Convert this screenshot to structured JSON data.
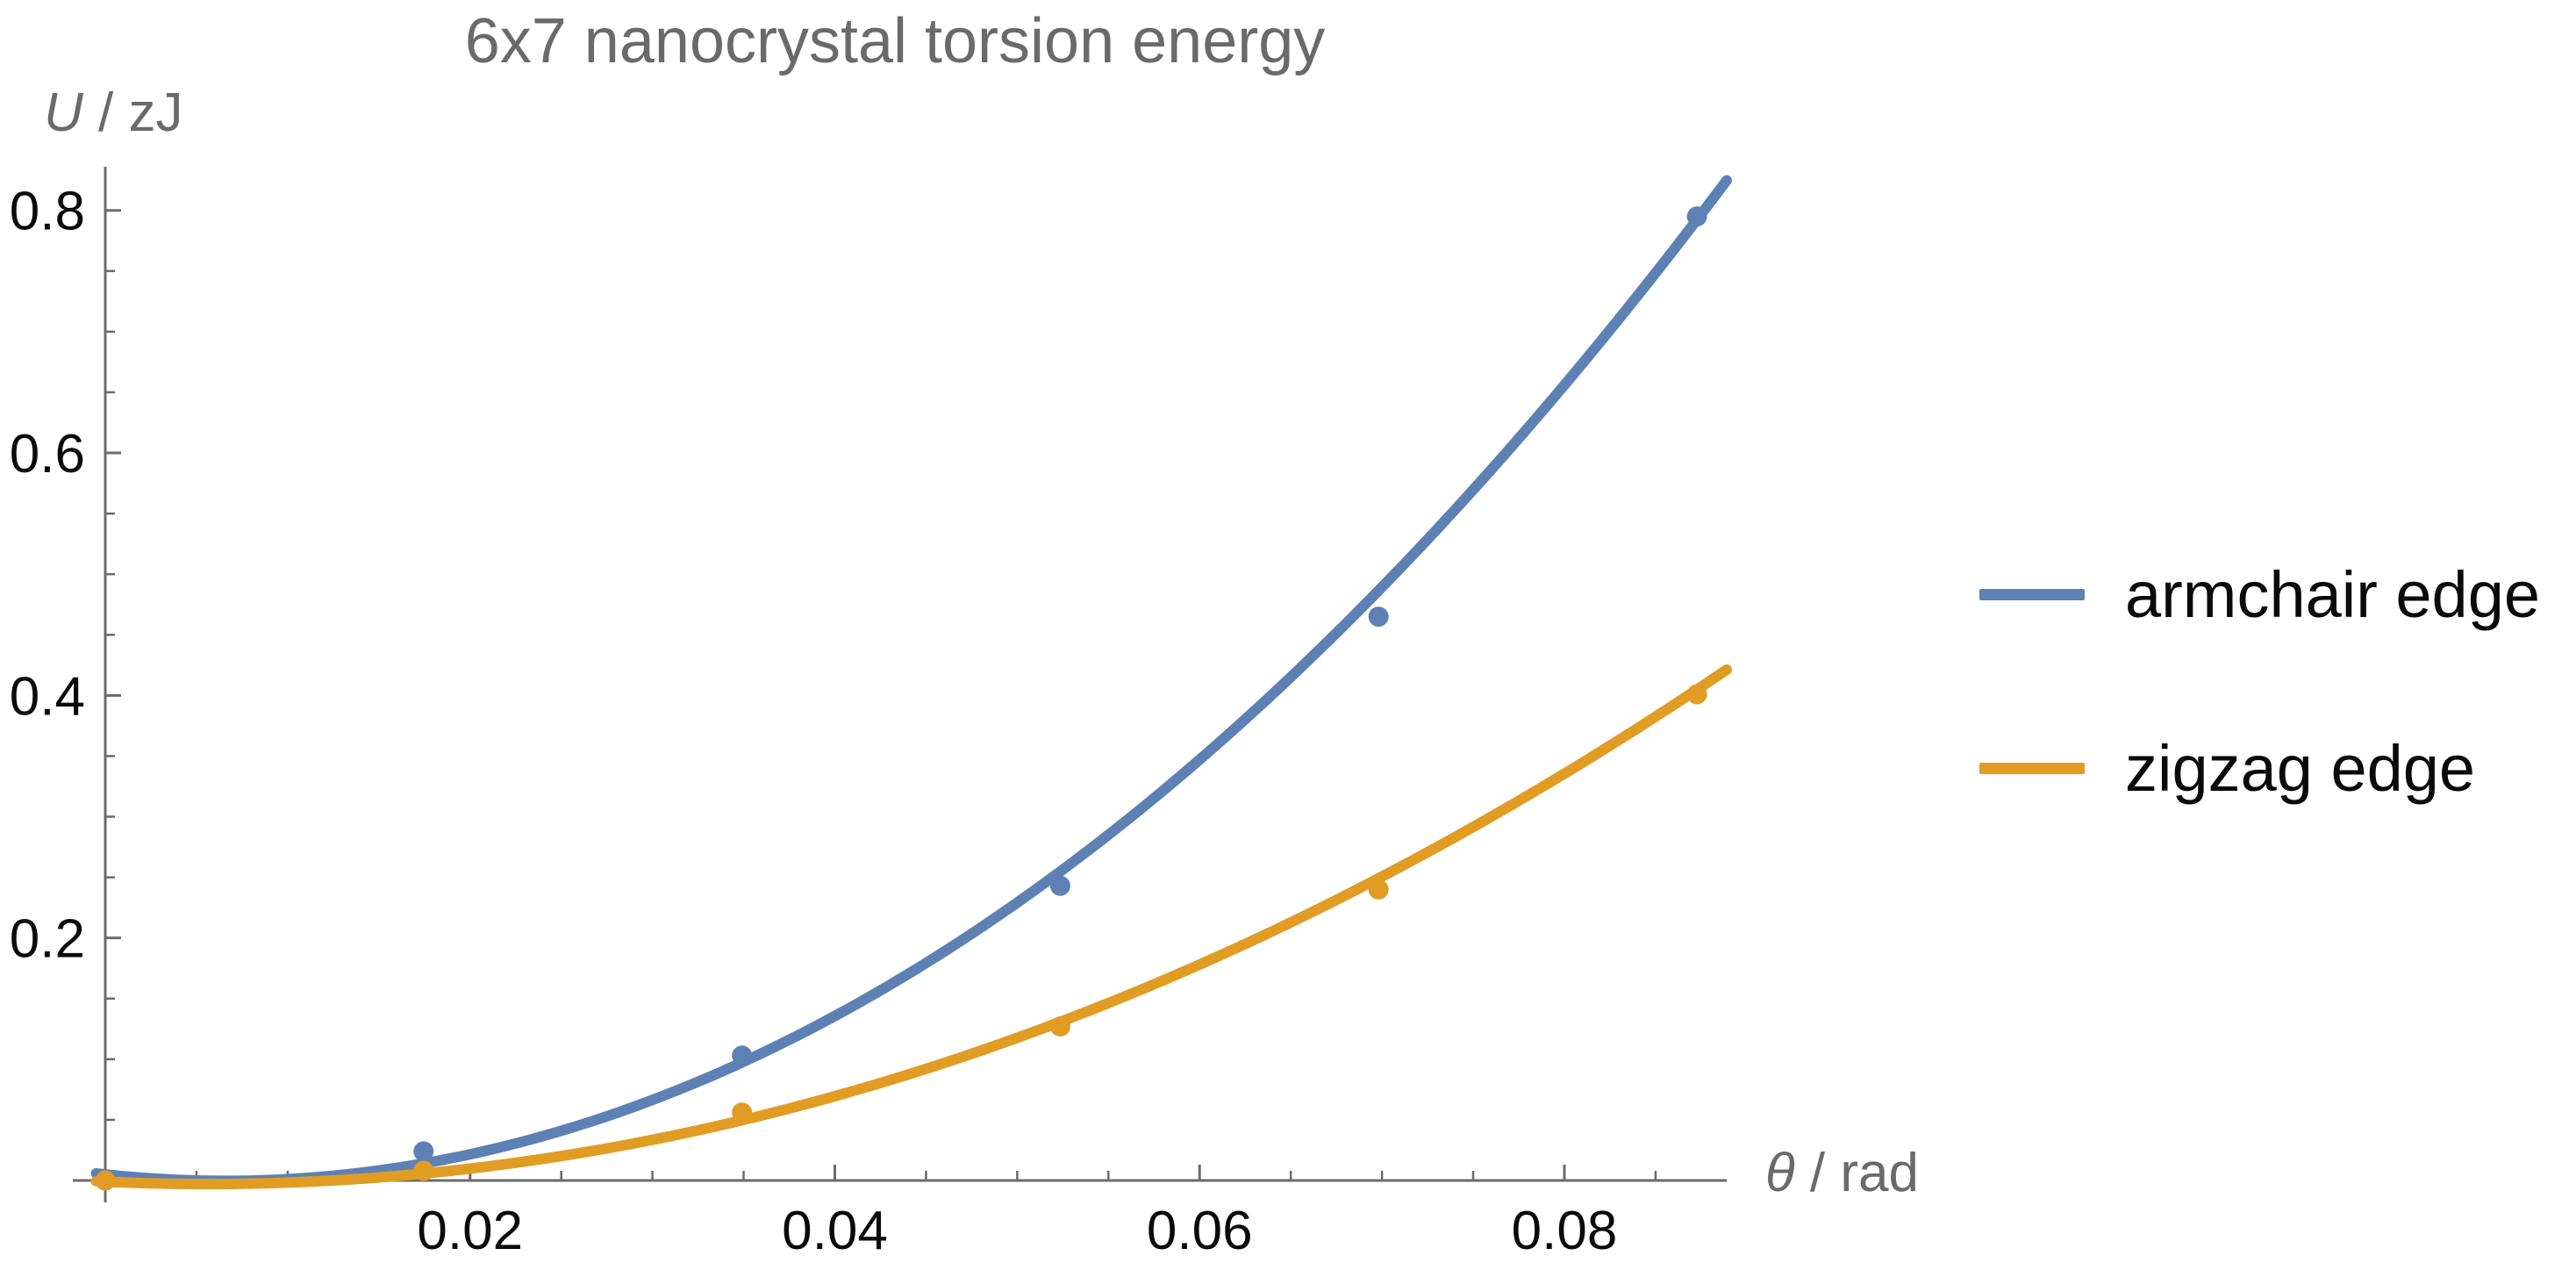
{
  "figure": {
    "title": "6x7 nanocrystal torsion energy",
    "y_axis_label": {
      "italic": "U",
      "rest": " / zJ"
    },
    "x_axis_label": {
      "italic": "θ",
      "rest": " / rad"
    }
  },
  "chart_data": {
    "type": "scatter",
    "title": "6x7 nanocrystal torsion energy",
    "xlabel": "θ / rad",
    "ylabel": "U / zJ",
    "xlim": [
      0,
      0.0889
    ],
    "ylim": [
      0,
      0.836
    ],
    "grid": false,
    "legend_position": "right-outside",
    "x_tick_values": [
      0.02,
      0.04,
      0.06,
      0.08
    ],
    "x_tick_labels": [
      "0.02",
      "0.04",
      "0.06",
      "0.08"
    ],
    "x_minor_tick_step": 0.005,
    "y_tick_values": [
      0.2,
      0.4,
      0.6,
      0.8
    ],
    "y_tick_labels": [
      "0.2",
      "0.4",
      "0.6",
      "0.8"
    ],
    "y_minor_tick_step": 0.05,
    "x": [
      0.0,
      0.01745,
      0.03491,
      0.05236,
      0.06981,
      0.08727
    ],
    "series": [
      {
        "name": "armchair edge",
        "color": "#5E81B5",
        "values": [
          0.0,
          0.024,
          0.103,
          0.243,
          0.465,
          0.795
        ],
        "fit_quadratic": {
          "a": 121.8,
          "b": -1.607,
          "c": 0.005
        }
      },
      {
        "name": "zigzag edge",
        "color": "#E19C24",
        "values": [
          0.0,
          0.008,
          0.056,
          0.127,
          0.24,
          0.401
        ],
        "fit_quadratic": {
          "a": 61.1,
          "b": -0.682,
          "c": -0.001
        }
      }
    ],
    "style": {
      "axis_color": "#6b6b6b",
      "tick_label_color": "#0a0a0a",
      "label_color": "#6a6a6a",
      "curve_thickness": 12,
      "point_radius": 11.5
    }
  }
}
